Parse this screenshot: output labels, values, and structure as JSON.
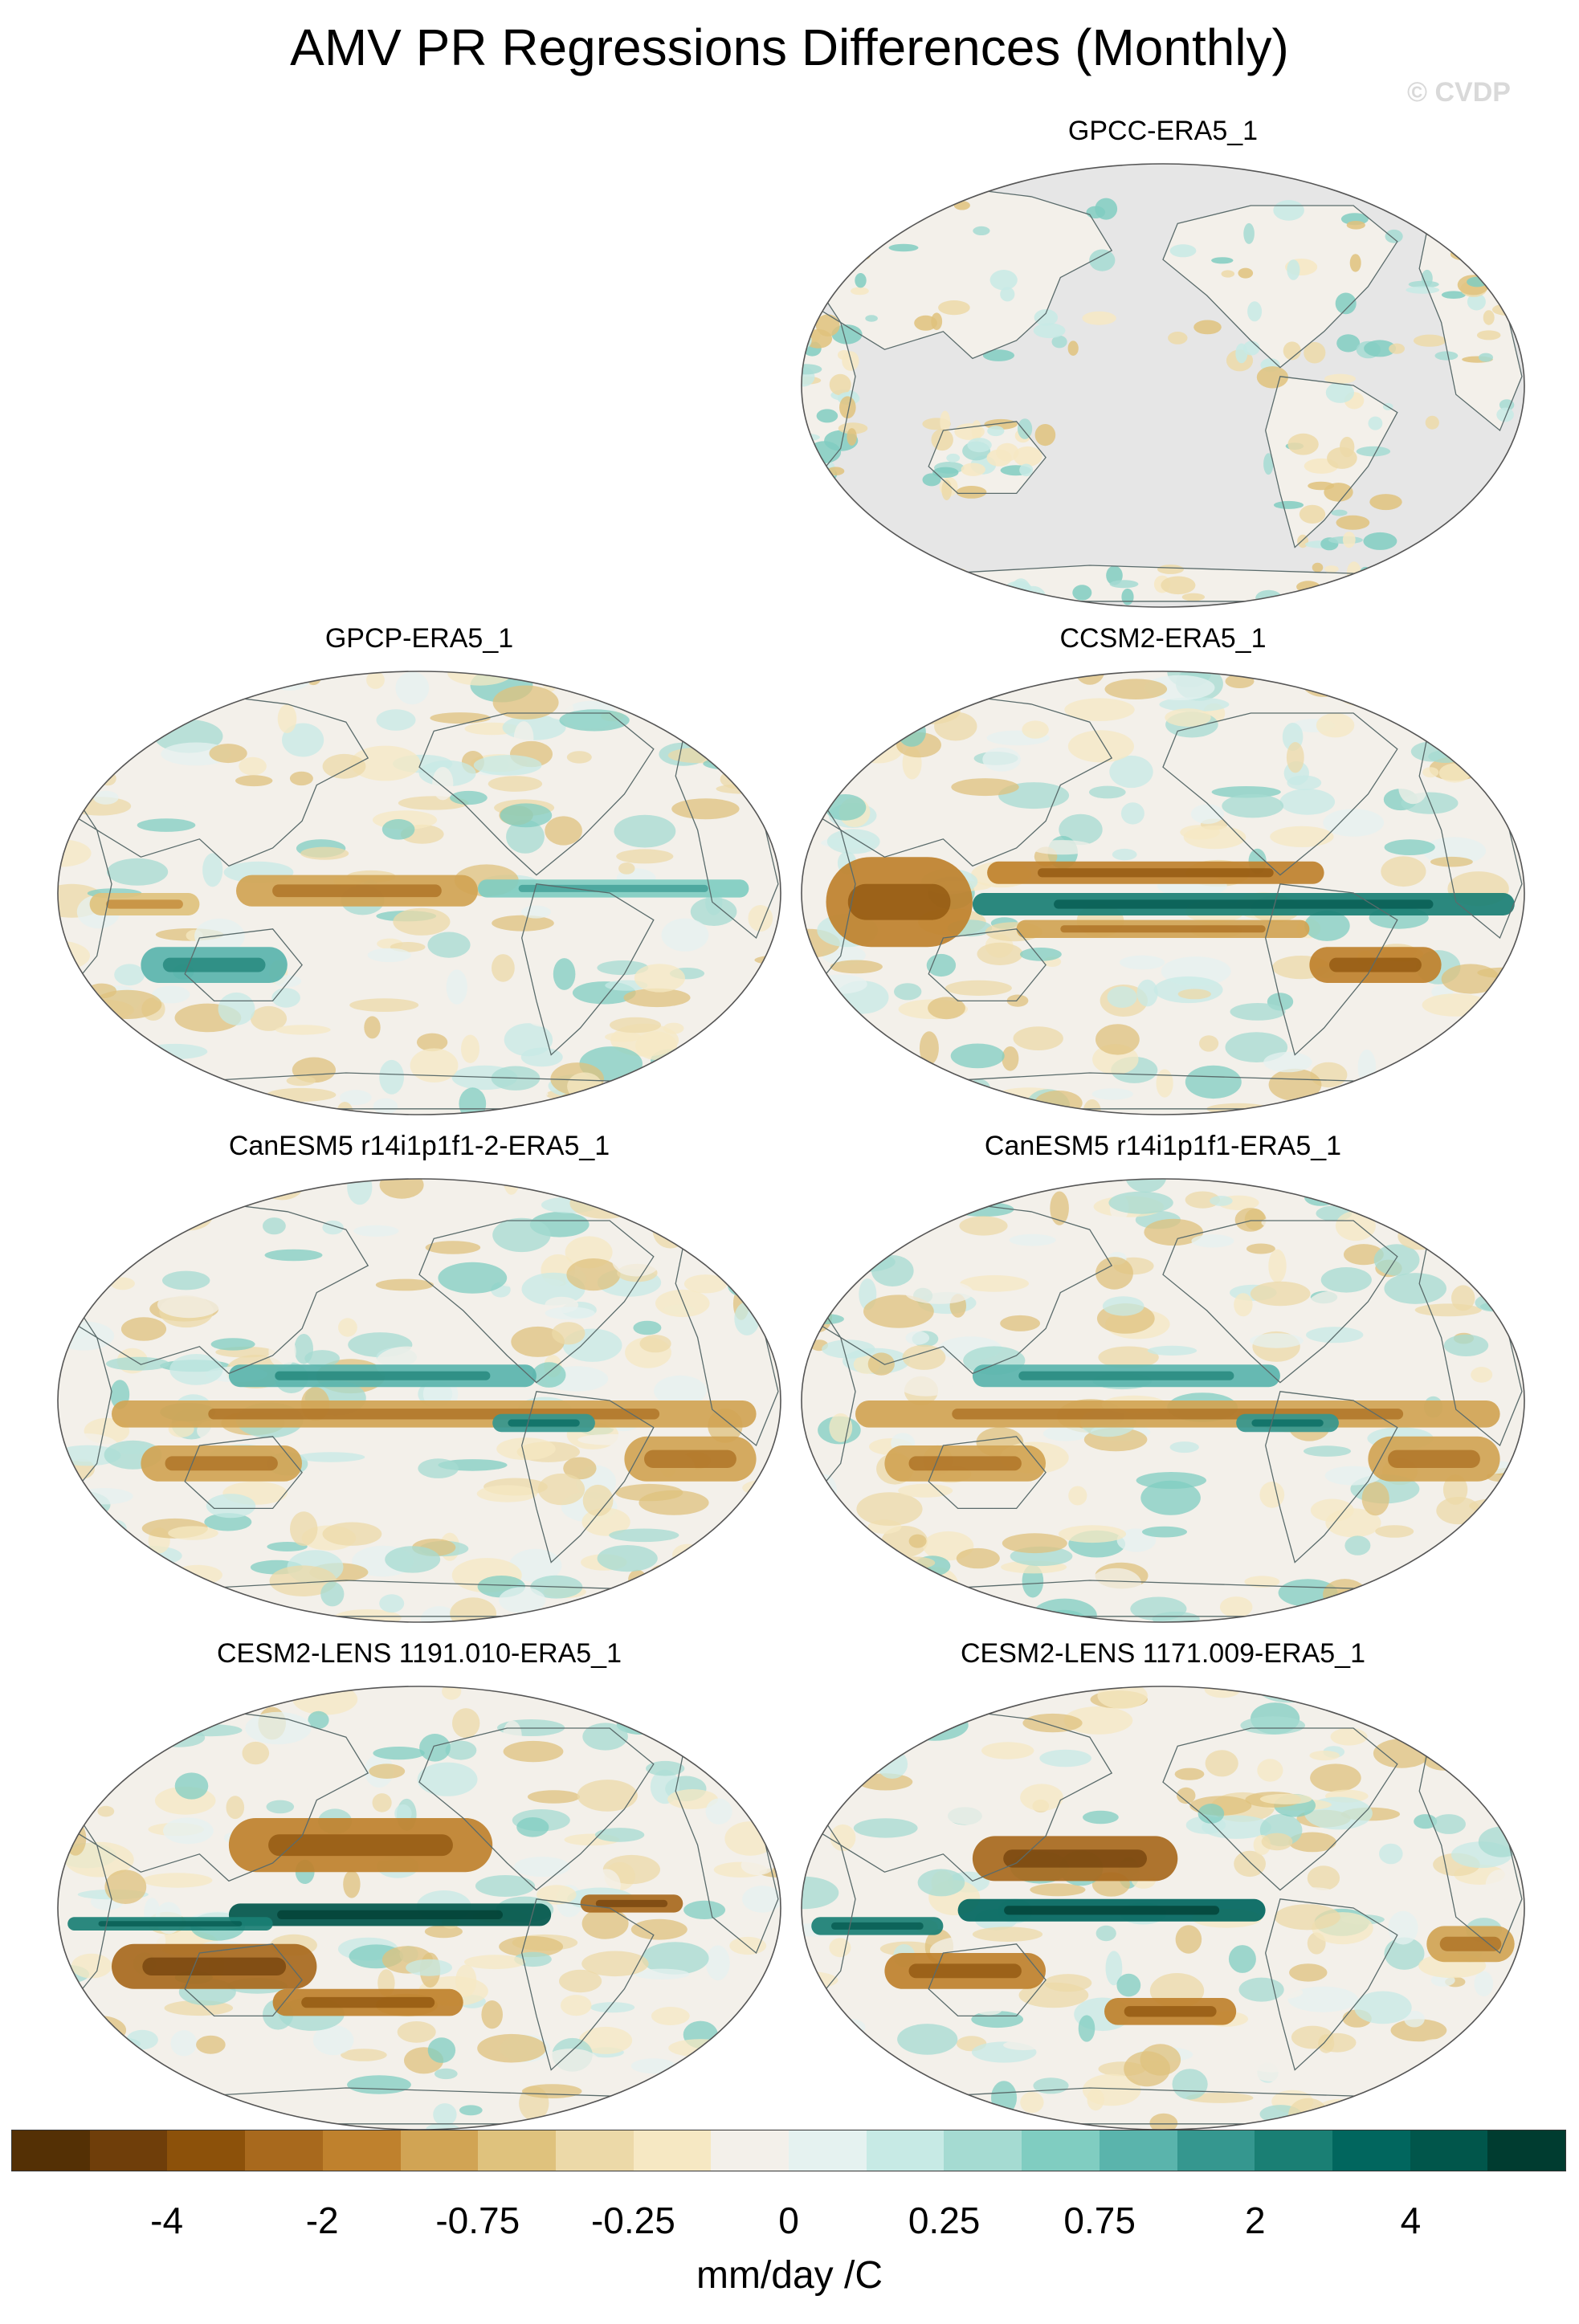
{
  "title": "AMV PR Regressions Differences (Monthly)",
  "watermark": "© CVDP",
  "panels": [
    {
      "title": "GPCC-ERA5_1",
      "fill": "land-only"
    },
    {
      "title": "GPCP-ERA5_1",
      "fill": "global"
    },
    {
      "title": "CCSM2-ERA5_1",
      "fill": "global"
    },
    {
      "title": "CanESM5 r14i1p1f1-2-ERA5_1",
      "fill": "global"
    },
    {
      "title": "CanESM5 r14i1p1f1-ERA5_1",
      "fill": "global"
    },
    {
      "title": "CESM2-LENS 1191.010-ERA5_1",
      "fill": "global"
    },
    {
      "title": "CESM2-LENS 1171.009-ERA5_1",
      "fill": "global"
    }
  ],
  "colorbar": {
    "colors": [
      "#543005",
      "#6f3e0a",
      "#8c510a",
      "#a8691d",
      "#bf812d",
      "#d1a454",
      "#dfc27d",
      "#ecd9a8",
      "#f6e8c3",
      "#f3f0ea",
      "#e5f2f0",
      "#c7eae5",
      "#a5dbd2",
      "#80cdc1",
      "#5ab4ac",
      "#35978f",
      "#1a7f74",
      "#01665e",
      "#01564b",
      "#003c30"
    ],
    "ticks": [
      "-4",
      "-2",
      "-0.75",
      "-0.25",
      "0",
      "0.25",
      "0.75",
      "2",
      "4"
    ],
    "units": "mm/day /C"
  },
  "colors": {
    "land_mask": "#e6e6e6",
    "coast": "#5a6b6b",
    "ocean_neutral": "#f3f0ea"
  }
}
